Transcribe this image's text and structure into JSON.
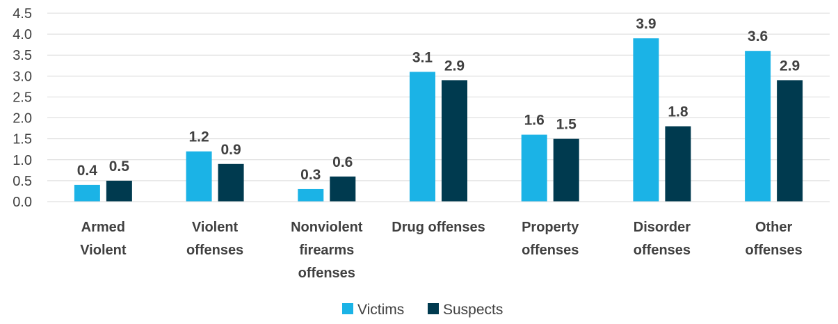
{
  "chart_data": {
    "type": "bar",
    "categories": [
      [
        "Armed",
        "Violent"
      ],
      [
        "Violent",
        "offenses"
      ],
      [
        "Nonviolent",
        "firearms",
        "offenses"
      ],
      [
        "Drug offenses"
      ],
      [
        "Property",
        "offenses"
      ],
      [
        "Disorder",
        "offenses"
      ],
      [
        "Other",
        "offenses"
      ]
    ],
    "series": [
      {
        "name": "Victims",
        "color": "#1BB3E6",
        "values": [
          0.4,
          1.2,
          0.3,
          3.1,
          1.6,
          3.9,
          3.6
        ]
      },
      {
        "name": "Suspects",
        "color": "#003A4F",
        "values": [
          0.5,
          0.9,
          0.6,
          2.9,
          1.5,
          1.8,
          2.9
        ]
      }
    ],
    "yticks": [
      "0.0",
      "0.5",
      "1.0",
      "1.5",
      "2.0",
      "2.5",
      "3.0",
      "3.5",
      "4.0",
      "4.5"
    ],
    "ylim": [
      0,
      4.5
    ],
    "grid": true,
    "gridcolor": "#D9D9D9",
    "legend": "bottom-center",
    "title": "",
    "xlabel": "",
    "ylabel": ""
  }
}
